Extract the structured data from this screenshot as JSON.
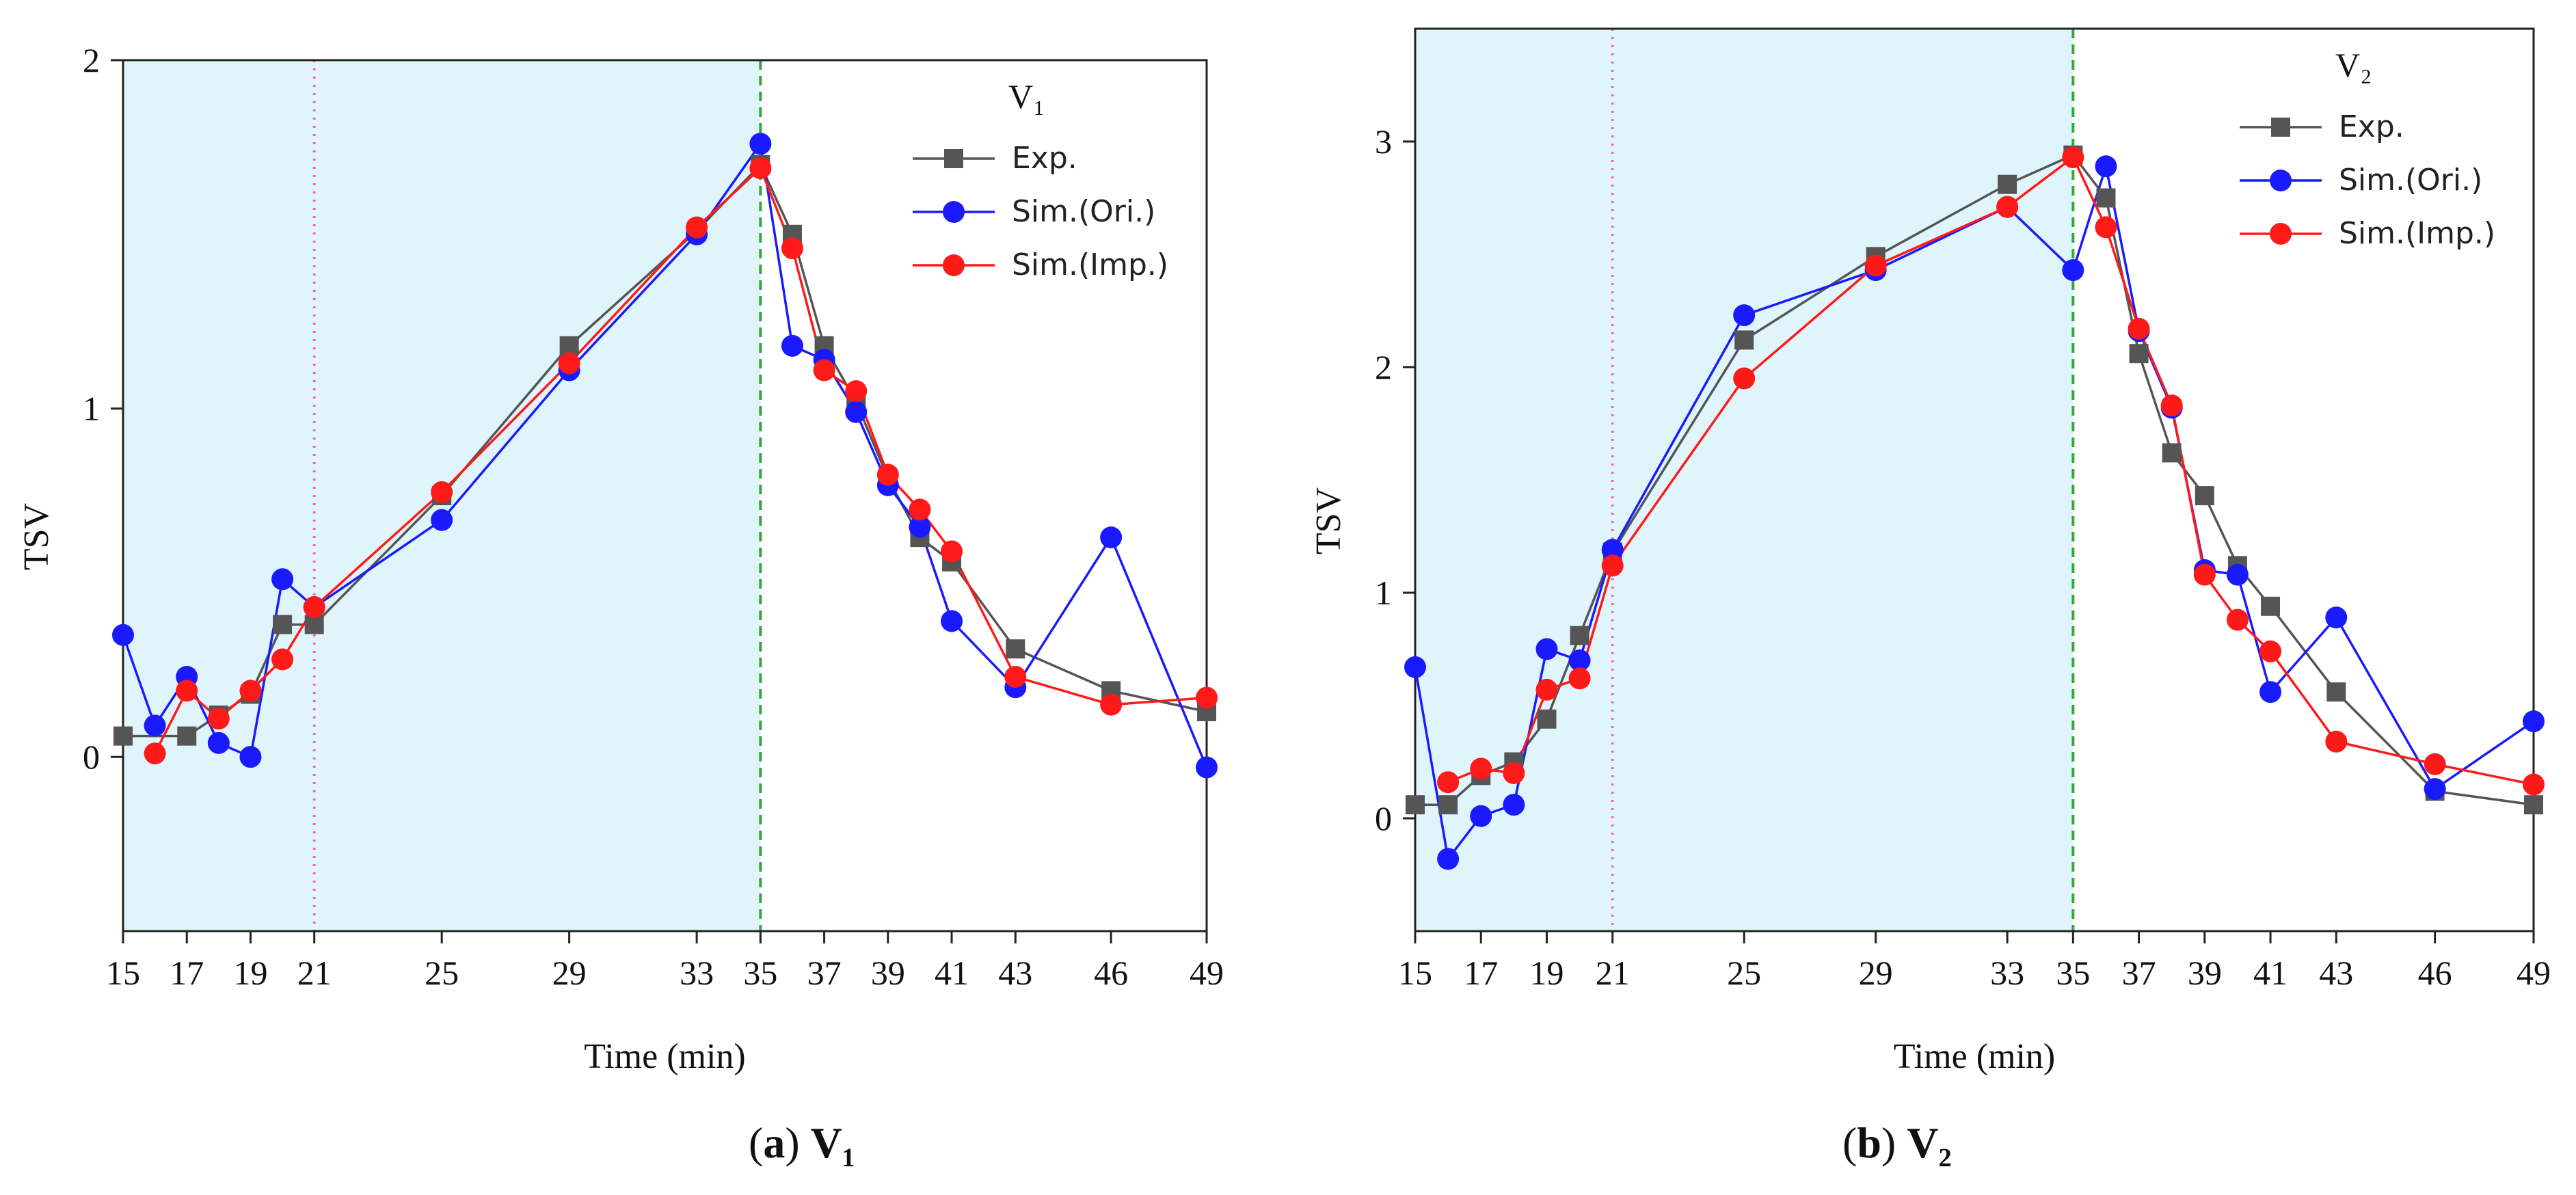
{
  "colors": {
    "exp": "#555555",
    "sim_ori": "#1a1aff",
    "sim_imp": "#ff1a1a",
    "shade": "#dff5fb",
    "dotted_line": "#ff66aa",
    "dashed_line": "#33aa33"
  },
  "captions": [
    {
      "letter": "a",
      "title": "V₁"
    },
    {
      "letter": "b",
      "title": "V₂"
    }
  ],
  "chart_data": [
    {
      "type": "line",
      "title": "",
      "legend_title": "V₁",
      "legend_position": "top-right",
      "xlabel": "Time (min)",
      "ylabel": "TSV",
      "xlim": [
        15,
        49
      ],
      "ylim": [
        -0.5,
        2
      ],
      "xticks": [
        15,
        17,
        19,
        21,
        25,
        29,
        33,
        35,
        37,
        39,
        41,
        43,
        46,
        49
      ],
      "yticks": [
        0,
        1,
        2
      ],
      "shaded_region": [
        15,
        35
      ],
      "dotted_line_x": 21,
      "dashed_line_x": 35,
      "series": [
        {
          "name": "Exp.",
          "key": "exp",
          "marker": "square",
          "x": [
            15,
            17,
            18,
            19,
            20,
            21,
            25,
            29,
            33,
            35,
            36,
            37,
            38,
            39,
            40,
            41,
            43,
            46,
            49
          ],
          "y": [
            0.06,
            0.06,
            0.12,
            0.18,
            0.38,
            0.38,
            0.75,
            1.18,
            1.51,
            1.7,
            1.5,
            1.18,
            1.02,
            0.8,
            0.63,
            0.56,
            0.31,
            0.19,
            0.13
          ]
        },
        {
          "name": "Sim.(Ori.)",
          "key": "sim_ori",
          "marker": "circle",
          "x": [
            15,
            16,
            17,
            18,
            19,
            20,
            21,
            25,
            29,
            33,
            35,
            36,
            37,
            38,
            39,
            40,
            41,
            43,
            46,
            49
          ],
          "y": [
            0.35,
            0.09,
            0.23,
            0.04,
            0.0,
            0.51,
            0.43,
            0.68,
            1.11,
            1.5,
            1.76,
            1.18,
            1.14,
            0.99,
            0.78,
            0.66,
            0.39,
            0.2,
            0.63,
            -0.03
          ]
        },
        {
          "name": "Sim.(Imp.)",
          "key": "sim_imp",
          "marker": "circle",
          "x": [
            16,
            17,
            18,
            19,
            20,
            21,
            25,
            29,
            33,
            35,
            36,
            37,
            38,
            39,
            40,
            41,
            43,
            46,
            49
          ],
          "y": [
            0.01,
            0.19,
            0.11,
            0.19,
            0.28,
            0.43,
            0.76,
            1.13,
            1.52,
            1.69,
            1.46,
            1.11,
            1.05,
            0.81,
            0.71,
            0.59,
            0.23,
            0.15,
            0.17
          ]
        }
      ]
    },
    {
      "type": "line",
      "title": "",
      "legend_title": "V₂",
      "legend_position": "top-right",
      "xlabel": "Time (min)",
      "ylabel": "TSV",
      "xlim": [
        15,
        49
      ],
      "ylim": [
        -0.5,
        3.5
      ],
      "xticks": [
        15,
        17,
        19,
        21,
        25,
        29,
        33,
        35,
        37,
        39,
        41,
        43,
        46,
        49
      ],
      "yticks": [
        0,
        1,
        2,
        3
      ],
      "shaded_region": [
        15,
        35
      ],
      "dotted_line_x": 21,
      "dashed_line_x": 35,
      "series": [
        {
          "name": "Exp.",
          "key": "exp",
          "marker": "square",
          "x": [
            15,
            16,
            17,
            18,
            19,
            20,
            21,
            25,
            29,
            33,
            35,
            36,
            37,
            38,
            39,
            40,
            41,
            43,
            46,
            49
          ],
          "y": [
            0.06,
            0.06,
            0.19,
            0.25,
            0.44,
            0.81,
            1.18,
            2.12,
            2.49,
            2.81,
            2.94,
            2.75,
            2.06,
            1.62,
            1.43,
            1.12,
            0.94,
            0.56,
            0.12,
            0.06
          ]
        },
        {
          "name": "Sim.(Ori.)",
          "key": "sim_ori",
          "marker": "circle",
          "x": [
            15,
            16,
            17,
            18,
            19,
            20,
            21,
            25,
            29,
            33,
            35,
            36,
            37,
            38,
            39,
            40,
            41,
            43,
            46,
            49
          ],
          "y": [
            0.67,
            -0.18,
            0.01,
            0.06,
            0.75,
            0.7,
            1.19,
            2.23,
            2.43,
            2.71,
            2.43,
            2.89,
            2.16,
            1.82,
            1.1,
            1.08,
            0.56,
            0.89,
            0.13,
            0.43
          ]
        },
        {
          "name": "Sim.(Imp.)",
          "key": "sim_imp",
          "marker": "circle",
          "x": [
            16,
            17,
            18,
            19,
            20,
            21,
            25,
            29,
            33,
            35,
            36,
            37,
            38,
            39,
            40,
            41,
            43,
            46,
            49
          ],
          "y": [
            0.16,
            0.22,
            0.2,
            0.57,
            0.62,
            1.12,
            1.95,
            2.45,
            2.71,
            2.93,
            2.62,
            2.17,
            1.83,
            1.08,
            0.88,
            0.74,
            0.34,
            0.24,
            0.15
          ]
        }
      ]
    }
  ]
}
